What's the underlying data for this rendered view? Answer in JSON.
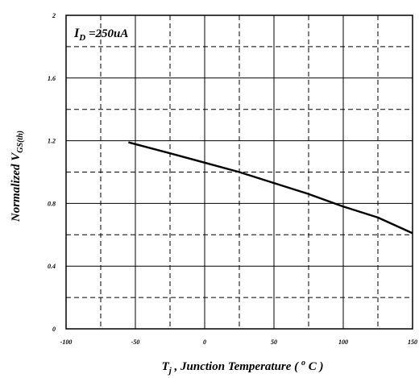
{
  "chart_data": {
    "type": "line",
    "xlim": [
      -100,
      150
    ],
    "ylim": [
      0,
      2
    ],
    "x_ticks": [
      -100,
      -50,
      0,
      50,
      100,
      150
    ],
    "x_tick_labels": [
      "-100",
      "-50",
      "0",
      "50",
      "100",
      "150"
    ],
    "y_ticks": [
      0,
      0.4,
      0.8,
      1.2,
      1.6,
      2
    ],
    "y_tick_labels": [
      "0",
      "0.4",
      "0.8",
      "1.2",
      "1.6",
      "2"
    ],
    "grid": {
      "solid_x": [
        -50,
        0,
        50,
        100
      ],
      "dashed_x": [
        -75,
        -25,
        25,
        75,
        125
      ],
      "solid_y": [
        0.4,
        0.8,
        1.2,
        1.6
      ],
      "dashed_y": [
        0.2,
        0.6,
        1.0,
        1.4,
        1.8
      ]
    },
    "xlabel": {
      "main": "T",
      "sub": "j",
      "rest": " , Junction Temperature ( ",
      "sup": "o",
      "unit": " C )"
    },
    "ylabel": {
      "main": "Normalized V",
      "sub": "GS(th)"
    },
    "annotation": {
      "main": "I",
      "sub": "D",
      "rest": " =250uA"
    },
    "series": [
      {
        "color": "#000000",
        "x": [
          -55,
          -25,
          0,
          25,
          50,
          75,
          100,
          125,
          150
        ],
        "y": [
          1.19,
          1.12,
          1.06,
          1.0,
          0.93,
          0.86,
          0.78,
          0.71,
          0.61
        ]
      }
    ]
  }
}
